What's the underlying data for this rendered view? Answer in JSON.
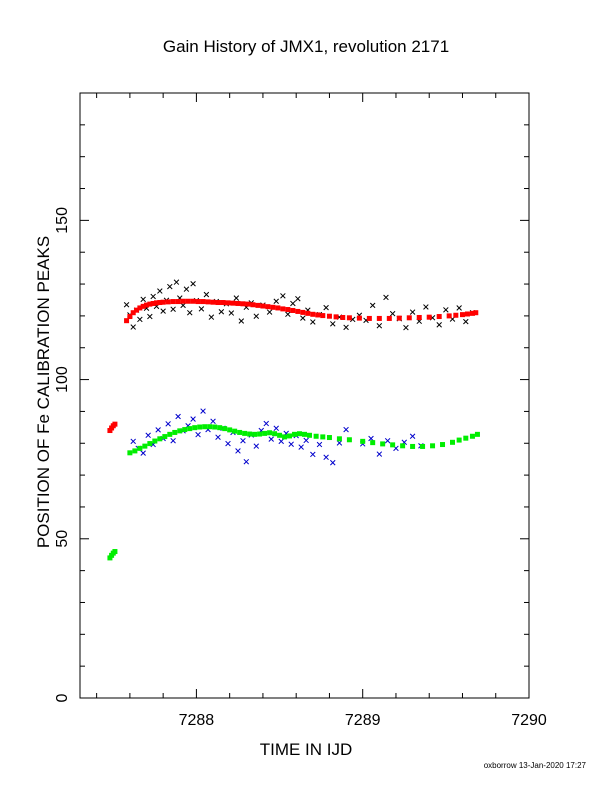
{
  "chart_data": {
    "type": "scatter",
    "title": "Gain History of JMX1, revolution 2171",
    "xlabel": "TIME IN IJD",
    "ylabel": "POSITION OF Fe CALIBRATION PEAKS",
    "xlim": [
      7287.3,
      7290.0
    ],
    "ylim": [
      0,
      190
    ],
    "x_ticks": [
      7288,
      7289,
      7290
    ],
    "x_tick_labels": [
      "7288",
      "7289",
      "7290"
    ],
    "y_ticks": [
      0,
      50,
      100,
      150
    ],
    "y_tick_labels": [
      "0",
      "50",
      "100",
      "150"
    ],
    "grid": false,
    "footer": "oxborrow 13-Jan-2020 17:27",
    "series": [
      {
        "marker": "x",
        "color": "#000000",
        "points": [
          [
            7287.58,
            123.5
          ],
          [
            7287.6,
            120.3
          ],
          [
            7287.62,
            116.5
          ],
          [
            7287.64,
            121.8
          ],
          [
            7287.66,
            118.9
          ],
          [
            7287.68,
            125.2
          ],
          [
            7287.7,
            122.4
          ],
          [
            7287.72,
            119.8
          ],
          [
            7287.74,
            126.1
          ],
          [
            7287.76,
            123.0
          ],
          [
            7287.78,
            127.8
          ],
          [
            7287.8,
            121.5
          ],
          [
            7287.82,
            124.9
          ],
          [
            7287.84,
            129.2
          ],
          [
            7287.86,
            122.1
          ],
          [
            7287.88,
            130.6
          ],
          [
            7287.9,
            125.6
          ],
          [
            7287.92,
            123.3
          ],
          [
            7287.94,
            128.4
          ],
          [
            7287.96,
            121.0
          ],
          [
            7287.98,
            130.1
          ],
          [
            7288.0,
            124.8
          ],
          [
            7288.03,
            122.2
          ],
          [
            7288.06,
            126.7
          ],
          [
            7288.09,
            119.6
          ],
          [
            7288.12,
            124.5
          ],
          [
            7288.15,
            121.3
          ],
          [
            7288.18,
            123.8
          ],
          [
            7288.21,
            120.9
          ],
          [
            7288.24,
            125.6
          ],
          [
            7288.27,
            118.4
          ],
          [
            7288.3,
            122.7
          ],
          [
            7288.33,
            124.1
          ],
          [
            7288.36,
            119.9
          ],
          [
            7288.4,
            123.4
          ],
          [
            7288.44,
            121.2
          ],
          [
            7288.48,
            124.6
          ],
          [
            7288.52,
            126.3
          ],
          [
            7288.55,
            120.5
          ],
          [
            7288.58,
            123.9
          ],
          [
            7288.61,
            125.4
          ],
          [
            7288.64,
            119.3
          ],
          [
            7288.67,
            121.8
          ],
          [
            7288.7,
            118.1
          ],
          [
            7288.74,
            120.4
          ],
          [
            7288.78,
            122.6
          ],
          [
            7288.82,
            117.5
          ],
          [
            7288.86,
            119.6
          ],
          [
            7288.9,
            116.4
          ],
          [
            7288.94,
            118.9
          ],
          [
            7288.98,
            120.2
          ],
          [
            7289.02,
            118.6
          ],
          [
            7289.06,
            123.3
          ],
          [
            7289.1,
            116.9
          ],
          [
            7289.14,
            125.8
          ],
          [
            7289.18,
            120.7
          ],
          [
            7289.22,
            119.1
          ],
          [
            7289.26,
            116.3
          ],
          [
            7289.3,
            121.2
          ],
          [
            7289.34,
            118.3
          ],
          [
            7289.38,
            122.8
          ],
          [
            7289.42,
            119.4
          ],
          [
            7289.46,
            117.2
          ],
          [
            7289.5,
            121.9
          ],
          [
            7289.54,
            119.0
          ],
          [
            7289.58,
            122.5
          ],
          [
            7289.62,
            118.2
          ],
          [
            7289.66,
            121.0
          ]
        ]
      },
      {
        "marker": "square",
        "color": "#ff0000",
        "points": [
          [
            7287.48,
            84.0
          ],
          [
            7287.49,
            84.8
          ],
          [
            7287.5,
            85.5
          ],
          [
            7287.51,
            86.0
          ],
          [
            7287.58,
            118.5
          ],
          [
            7287.6,
            119.8
          ],
          [
            7287.62,
            121.0
          ],
          [
            7287.64,
            121.8
          ],
          [
            7287.66,
            122.5
          ],
          [
            7287.68,
            123.0
          ],
          [
            7287.7,
            123.4
          ],
          [
            7287.72,
            123.7
          ],
          [
            7287.74,
            123.9
          ],
          [
            7287.76,
            124.1
          ],
          [
            7287.78,
            124.2
          ],
          [
            7287.8,
            124.3
          ],
          [
            7287.83,
            124.4
          ],
          [
            7287.86,
            124.5
          ],
          [
            7287.89,
            124.5
          ],
          [
            7287.92,
            124.6
          ],
          [
            7287.95,
            124.6
          ],
          [
            7287.98,
            124.6
          ],
          [
            7288.01,
            124.5
          ],
          [
            7288.04,
            124.5
          ],
          [
            7288.07,
            124.4
          ],
          [
            7288.1,
            124.3
          ],
          [
            7288.13,
            124.2
          ],
          [
            7288.16,
            124.2
          ],
          [
            7288.19,
            124.1
          ],
          [
            7288.22,
            124.0
          ],
          [
            7288.25,
            123.9
          ],
          [
            7288.28,
            123.8
          ],
          [
            7288.31,
            123.7
          ],
          [
            7288.34,
            123.5
          ],
          [
            7288.37,
            123.3
          ],
          [
            7288.4,
            123.1
          ],
          [
            7288.43,
            122.9
          ],
          [
            7288.46,
            122.7
          ],
          [
            7288.49,
            122.5
          ],
          [
            7288.52,
            122.2
          ],
          [
            7288.55,
            122.0
          ],
          [
            7288.58,
            121.7
          ],
          [
            7288.61,
            121.4
          ],
          [
            7288.64,
            121.1
          ],
          [
            7288.67,
            120.8
          ],
          [
            7288.7,
            120.5
          ],
          [
            7288.73,
            120.3
          ],
          [
            7288.76,
            120.1
          ],
          [
            7288.8,
            119.9
          ],
          [
            7288.84,
            119.7
          ],
          [
            7288.88,
            119.5
          ],
          [
            7288.92,
            119.4
          ],
          [
            7288.98,
            119.3
          ],
          [
            7289.04,
            119.2
          ],
          [
            7289.1,
            119.2
          ],
          [
            7289.16,
            119.2
          ],
          [
            7289.22,
            119.3
          ],
          [
            7289.28,
            119.4
          ],
          [
            7289.34,
            119.5
          ],
          [
            7289.4,
            119.6
          ],
          [
            7289.46,
            119.8
          ],
          [
            7289.52,
            120.0
          ],
          [
            7289.56,
            120.2
          ],
          [
            7289.6,
            120.4
          ],
          [
            7289.63,
            120.6
          ],
          [
            7289.66,
            120.8
          ],
          [
            7289.68,
            121.0
          ]
        ]
      },
      {
        "marker": "x",
        "color": "#0000cc",
        "points": [
          [
            7287.62,
            80.6
          ],
          [
            7287.65,
            78.4
          ],
          [
            7287.68,
            76.9
          ],
          [
            7287.71,
            82.5
          ],
          [
            7287.74,
            79.6
          ],
          [
            7287.77,
            84.2
          ],
          [
            7287.8,
            81.5
          ],
          [
            7287.83,
            86.1
          ],
          [
            7287.86,
            80.8
          ],
          [
            7287.89,
            88.4
          ],
          [
            7287.92,
            83.9
          ],
          [
            7287.95,
            85.5
          ],
          [
            7287.98,
            87.6
          ],
          [
            7288.01,
            82.7
          ],
          [
            7288.04,
            90.1
          ],
          [
            7288.07,
            84.3
          ],
          [
            7288.1,
            86.9
          ],
          [
            7288.13,
            81.9
          ],
          [
            7288.16,
            84.7
          ],
          [
            7288.19,
            79.9
          ],
          [
            7288.22,
            83.4
          ],
          [
            7288.25,
            77.6
          ],
          [
            7288.28,
            80.8
          ],
          [
            7288.3,
            74.2
          ],
          [
            7288.33,
            82.6
          ],
          [
            7288.36,
            79.1
          ],
          [
            7288.39,
            84.0
          ],
          [
            7288.42,
            86.2
          ],
          [
            7288.45,
            81.3
          ],
          [
            7288.48,
            84.7
          ],
          [
            7288.51,
            80.6
          ],
          [
            7288.54,
            83.1
          ],
          [
            7288.57,
            79.7
          ],
          [
            7288.6,
            82.4
          ],
          [
            7288.63,
            78.8
          ],
          [
            7288.66,
            80.9
          ],
          [
            7288.7,
            76.5
          ],
          [
            7288.74,
            79.6
          ],
          [
            7288.78,
            75.6
          ],
          [
            7288.82,
            73.9
          ],
          [
            7288.86,
            80.1
          ],
          [
            7288.9,
            84.3
          ],
          [
            7289.0,
            79.8
          ],
          [
            7289.05,
            81.5
          ],
          [
            7289.1,
            76.6
          ],
          [
            7289.15,
            80.8
          ],
          [
            7289.2,
            78.4
          ],
          [
            7289.25,
            80.3
          ],
          [
            7289.3,
            82.2
          ],
          [
            7289.35,
            79.2
          ]
        ]
      },
      {
        "marker": "square",
        "color": "#00ee00",
        "points": [
          [
            7287.48,
            44.0
          ],
          [
            7287.49,
            44.8
          ],
          [
            7287.5,
            45.5
          ],
          [
            7287.51,
            46.0
          ],
          [
            7287.6,
            77.0
          ],
          [
            7287.63,
            77.6
          ],
          [
            7287.66,
            78.4
          ],
          [
            7287.69,
            79.1
          ],
          [
            7287.72,
            79.9
          ],
          [
            7287.75,
            80.7
          ],
          [
            7287.78,
            81.4
          ],
          [
            7287.81,
            82.1
          ],
          [
            7287.84,
            82.8
          ],
          [
            7287.87,
            83.4
          ],
          [
            7287.9,
            83.9
          ],
          [
            7287.93,
            84.3
          ],
          [
            7287.96,
            84.6
          ],
          [
            7287.99,
            84.9
          ],
          [
            7288.02,
            85.1
          ],
          [
            7288.05,
            85.2
          ],
          [
            7288.08,
            85.2
          ],
          [
            7288.11,
            85.1
          ],
          [
            7288.14,
            84.9
          ],
          [
            7288.17,
            84.6
          ],
          [
            7288.2,
            84.2
          ],
          [
            7288.23,
            83.8
          ],
          [
            7288.26,
            83.4
          ],
          [
            7288.29,
            83.1
          ],
          [
            7288.32,
            82.9
          ],
          [
            7288.35,
            82.8
          ],
          [
            7288.38,
            82.9
          ],
          [
            7288.41,
            83.1
          ],
          [
            7288.44,
            83.3
          ],
          [
            7288.47,
            83.0
          ],
          [
            7288.5,
            82.5
          ],
          [
            7288.53,
            82.0
          ],
          [
            7288.56,
            82.3
          ],
          [
            7288.59,
            82.8
          ],
          [
            7288.62,
            83.0
          ],
          [
            7288.65,
            82.8
          ],
          [
            7288.68,
            82.5
          ],
          [
            7288.72,
            82.2
          ],
          [
            7288.76,
            82.0
          ],
          [
            7288.8,
            81.8
          ],
          [
            7288.86,
            81.4
          ],
          [
            7288.92,
            81.1
          ],
          [
            7289.0,
            80.6
          ],
          [
            7289.06,
            80.2
          ],
          [
            7289.12,
            79.8
          ],
          [
            7289.18,
            79.5
          ],
          [
            7289.24,
            79.2
          ],
          [
            7289.3,
            79.0
          ],
          [
            7289.36,
            79.0
          ],
          [
            7289.42,
            79.2
          ],
          [
            7289.48,
            79.6
          ],
          [
            7289.54,
            80.3
          ],
          [
            7289.58,
            81.0
          ],
          [
            7289.62,
            81.6
          ],
          [
            7289.66,
            82.2
          ],
          [
            7289.69,
            82.8
          ]
        ]
      }
    ]
  }
}
